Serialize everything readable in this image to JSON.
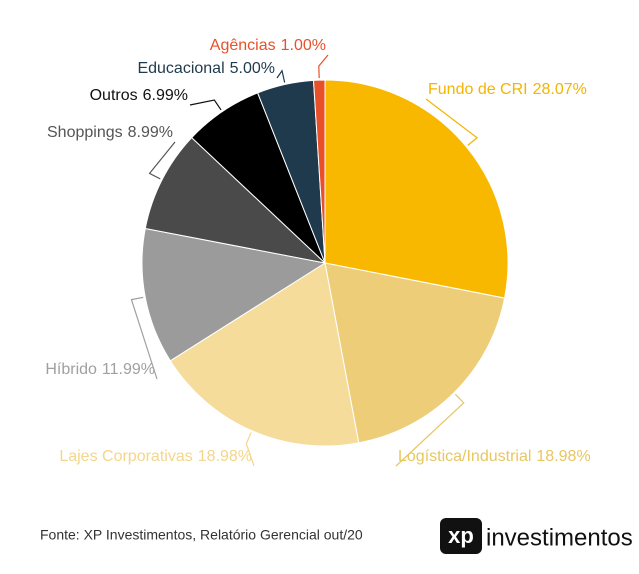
{
  "chart_data": {
    "type": "pie",
    "categories": [
      "Fundo de CRI",
      "Logística/Industrial",
      "Lajes Corporativas",
      "Híbrido",
      "Shoppings",
      "Outros",
      "Educacional",
      "Agências"
    ],
    "values": [
      28.07,
      18.98,
      18.98,
      11.99,
      8.99,
      6.99,
      5.0,
      1.0
    ],
    "value_labels": [
      "28.07%",
      "18.98%",
      "18.98%",
      "11.99%",
      "8.99%",
      "6.99%",
      "5.00%",
      "1.00%"
    ],
    "colors": [
      "#f8b800",
      "#edcd78",
      "#f6dc9a",
      "#9b9b9b",
      "#4a4a4a",
      "#000000",
      "#1f3a4d",
      "#e8502a"
    ],
    "label_colors": [
      "#f4b400",
      "#e8c660",
      "#f3d68a",
      "#a0a0a0",
      "#555555",
      "#111111",
      "#1f3a4d",
      "#e8502a"
    ]
  },
  "footer": {
    "source": "Fonte: XP Investimentos, Relatório Gerencial out/20",
    "logo_mark": "xp",
    "logo_text": "investimentos"
  }
}
